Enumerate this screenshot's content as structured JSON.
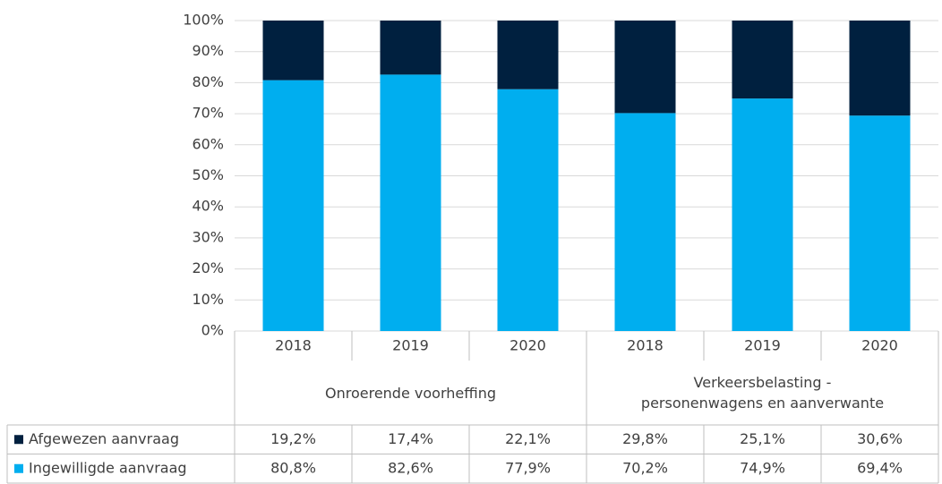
{
  "chart_data": {
    "type": "stacked_bar",
    "groups": [
      {
        "name": "Onroerende voorheffing",
        "categories": [
          "2018",
          "2019",
          "2020"
        ]
      },
      {
        "name": "Verkeersbelasting -\npersonenwagens en aanverwante",
        "categories": [
          "2018",
          "2019",
          "2020"
        ]
      }
    ],
    "series": [
      {
        "name": "Afgewezen aanvraag",
        "color": "#00203f",
        "values": [
          19.2,
          17.4,
          22.1,
          29.8,
          25.1,
          30.6
        ],
        "value_labels": [
          "19,2%",
          "17,4%",
          "22,1%",
          "29,8%",
          "25,1%",
          "30,6%"
        ]
      },
      {
        "name": "Ingewilligde aanvraag",
        "color": "#00aeef",
        "values": [
          80.8,
          82.6,
          77.9,
          70.2,
          74.9,
          69.4
        ],
        "value_labels": [
          "80,8%",
          "82,6%",
          "77,9%",
          "70,2%",
          "74,9%",
          "69,4%"
        ]
      }
    ],
    "ylim": [
      0,
      100
    ],
    "yticks": [
      {
        "value": 0,
        "label": "0%"
      },
      {
        "value": 10,
        "label": "10%"
      },
      {
        "value": 20,
        "label": "20%"
      },
      {
        "value": 30,
        "label": "30%"
      },
      {
        "value": 40,
        "label": "40%"
      },
      {
        "value": 50,
        "label": "50%"
      },
      {
        "value": 60,
        "label": "60%"
      },
      {
        "value": 70,
        "label": "70%"
      },
      {
        "value": 80,
        "label": "80%"
      },
      {
        "value": 90,
        "label": "90%"
      },
      {
        "value": 100,
        "label": "100%"
      }
    ],
    "grid": true
  }
}
